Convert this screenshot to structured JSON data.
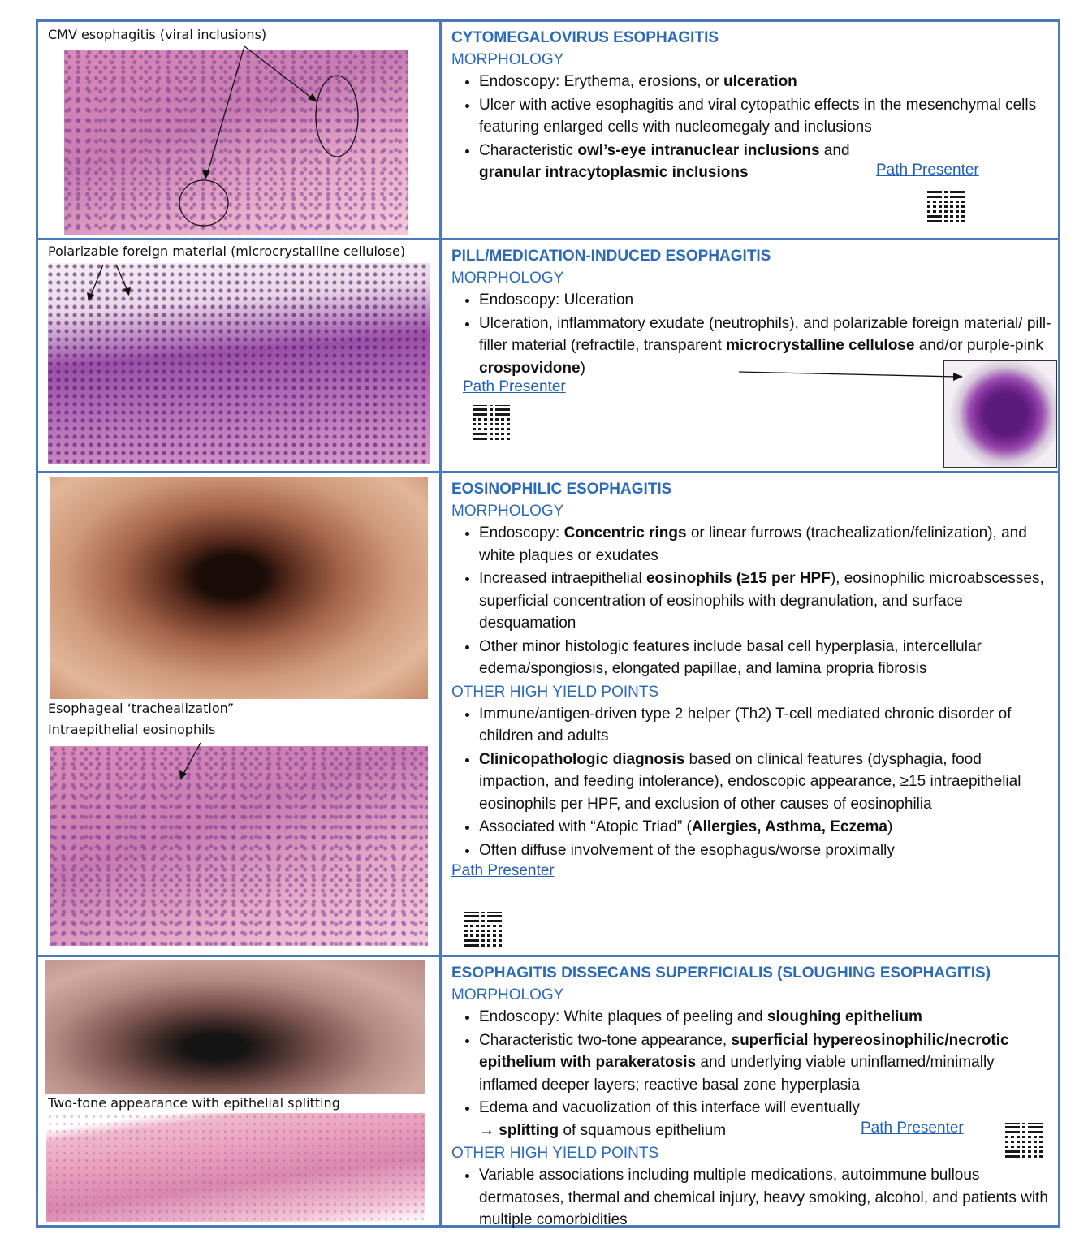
{
  "sections": [
    {
      "caption": "CMV esophagitis (viral inclusions)",
      "title": "CYTOMEGALOVIRUS ESOPHAGITIS",
      "morph_head": "MORPHOLOGY",
      "b1a": "Endoscopy: Erythema, erosions, or ",
      "b1b": "ulceration",
      "b2": "Ulcer with active esophagitis and viral cytopathic effects in the mesenchymal cells featuring enlarged cells with nucleomegaly and inclusions",
      "b3a": "Characteristic ",
      "b3b": "owl’s-eye intranuclear inclusions",
      "b3c": " and ",
      "b3d": "granular intracytoplasmic inclusions",
      "link": "Path Presenter"
    },
    {
      "caption": "Polarizable foreign material (microcrystalline cellulose)",
      "title": "PILL/MEDICATION-INDUCED ESOPHAGITIS",
      "morph_head": "MORPHOLOGY",
      "b1": "Endoscopy: Ulceration",
      "b2a": "Ulceration, inflammatory exudate (neutrophils), and polarizable foreign material/ pill-filler material (refractile, transparent ",
      "b2b": "microcrystalline cellulose",
      "b2c": " and/or purple-pink ",
      "b2d": "crospovidone",
      "b2e": ")",
      "link": "Path Presenter"
    },
    {
      "caption1": "Esophageal ‘trachealization”",
      "caption2": "Intraepithelial eosinophils",
      "title": "EOSINOPHILIC ESOPHAGITIS",
      "morph_head": "MORPHOLOGY",
      "b1a": "Endoscopy: ",
      "b1b": "Concentric rings",
      "b1c": " or linear furrows (trachealization/felinization), and white plaques or exudates",
      "b2a": "Increased intraepithelial ",
      "b2b": "eosinophils (≥15 per HPF",
      "b2c": "), eosinophilic microabscesses, superficial concentration of eosinophils with degranulation, and surface desquamation",
      "b3": "Other minor histologic features include basal cell hyperplasia, intercellular edema/spongiosis, elongated papillae, and lamina propria fibrosis",
      "other_head": "OTHER HIGH YIELD POINTS",
      "o1": "Immune/antigen-driven type 2 helper (Th2) T-cell mediated chronic disorder of children and adults",
      "o2a": "Clinicopathologic diagnosis",
      "o2b": " based on clinical features (dysphagia, food impaction, and feeding intolerance), endoscopic appearance, ≥15 intraepithelial eosinophils per HPF, and exclusion of other causes of eosinophilia",
      "o3a": "Associated with “Atopic Triad” (",
      "o3b": "Allergies, Asthma, Eczema",
      "o3c": ")",
      "o4": "Often diffuse involvement of the esophagus/worse proximally",
      "link": "Path Presenter"
    },
    {
      "caption": "Two-tone appearance with epithelial splitting",
      "title": "ESOPHAGITIS DISSECANS SUPERFICIALIS (SLOUGHING ESOPHAGITIS)",
      "morph_head": "MORPHOLOGY",
      "b1a": "Endoscopy: White plaques of peeling and ",
      "b1b": "sloughing epithelium",
      "b2a": "Characteristic two-tone appearance, ",
      "b2b": "superficial hypereosinophilic/necrotic epithelium with parakeratosis",
      "b2c": " and underlying viable uninflamed/minimally inflamed deeper layers; reactive basal zone hyperplasia",
      "b3a": "Edema and vacuolization of this interface will eventually → ",
      "b3b": "splitting",
      "b3c": " of squamous epithelium",
      "other_head": "OTHER HIGH YIELD POINTS",
      "o1": "Variable associations including multiple medications, autoimmune bullous dermatoses, thermal and chemical injury, heavy smoking, alcohol, and patients with multiple comorbidities",
      "link": "Path Presenter"
    }
  ]
}
